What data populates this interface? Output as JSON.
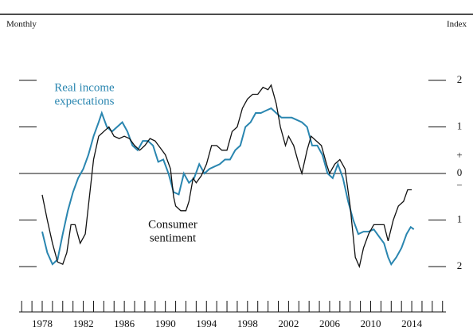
{
  "chart_data": {
    "type": "line",
    "header_left": "Monthly",
    "header_right": "Index",
    "xlim": [
      1975.75,
      2017.33
    ],
    "xticks": [
      1978,
      1982,
      1986,
      1990,
      1994,
      1998,
      2002,
      2006,
      2010,
      2014
    ],
    "xminor": [
      1976,
      1977,
      1978,
      1979,
      1980,
      1981,
      1982,
      1983,
      1984,
      1985,
      1986,
      1987,
      1988,
      1989,
      1990,
      1991,
      1992,
      1993,
      1994,
      1995,
      1996,
      1997,
      1998,
      1999,
      2000,
      2001,
      2002,
      2003,
      2004,
      2005,
      2006,
      2007,
      2008,
      2009,
      2010,
      2011,
      2012,
      2013,
      2014,
      2015,
      2016,
      2017
    ],
    "ylim": [
      -2.3,
      2.9
    ],
    "yticks": [
      2,
      1,
      0,
      {
        "value": -1,
        "label": "1"
      },
      {
        "value": -2,
        "label": "2"
      }
    ],
    "sign_labels": [
      "+",
      "−"
    ],
    "series": [
      {
        "name": "Real income expectations",
        "name_lines": [
          "Real income",
          "expectations"
        ],
        "color": "#2a86b0",
        "x": [
          1978.0,
          1978.5,
          1979.0,
          1979.5,
          1980.0,
          1980.5,
          1981.0,
          1981.5,
          1982.0,
          1982.5,
          1983.0,
          1983.5,
          1983.8,
          1984.3,
          1984.8,
          1985.3,
          1985.8,
          1986.3,
          1986.8,
          1987.3,
          1987.8,
          1988.3,
          1988.8,
          1989.3,
          1989.8,
          1990.3,
          1990.8,
          1991.3,
          1991.8,
          1992.3,
          1992.8,
          1993.3,
          1993.8,
          1994.3,
          1994.8,
          1995.3,
          1995.8,
          1996.3,
          1996.8,
          1997.3,
          1997.8,
          1998.3,
          1998.8,
          1999.3,
          1999.8,
          2000.3,
          2000.8,
          2001.3,
          2001.8,
          2002.3,
          2002.8,
          2003.3,
          2003.8,
          2004.3,
          2004.8,
          2005.3,
          2005.8,
          2006.3,
          2006.8,
          2007.3,
          2007.8,
          2008.3,
          2008.8,
          2009.3,
          2009.8,
          2010.3,
          2010.8,
          2011.3,
          2011.7,
          2012.0,
          2012.5,
          2013.0,
          2013.5,
          2013.9,
          2014.2
        ],
        "values": [
          -1.25,
          -1.7,
          -1.95,
          -1.85,
          -1.3,
          -0.8,
          -0.4,
          -0.1,
          0.1,
          0.4,
          0.8,
          1.1,
          1.3,
          1.0,
          0.9,
          1.0,
          1.1,
          0.9,
          0.6,
          0.5,
          0.7,
          0.7,
          0.6,
          0.25,
          0.3,
          0.0,
          -0.4,
          -0.45,
          0.0,
          -0.2,
          -0.1,
          0.2,
          0.0,
          0.1,
          0.15,
          0.2,
          0.3,
          0.3,
          0.5,
          0.6,
          1.0,
          1.1,
          1.3,
          1.3,
          1.35,
          1.4,
          1.3,
          1.2,
          1.2,
          1.2,
          1.15,
          1.1,
          1.0,
          0.6,
          0.6,
          0.4,
          0.0,
          -0.1,
          0.2,
          -0.1,
          -0.6,
          -1.0,
          -1.3,
          -1.25,
          -1.25,
          -1.2,
          -1.35,
          -1.5,
          -1.8,
          -1.95,
          -1.8,
          -1.6,
          -1.3,
          -1.15,
          -1.2
        ]
      },
      {
        "name": "Consumer sentiment",
        "name_lines": [
          "Consumer",
          "sentiment"
        ],
        "color": "#111111",
        "x": [
          1978.0,
          1978.5,
          1979.0,
          1979.5,
          1980.0,
          1980.4,
          1980.8,
          1981.2,
          1981.7,
          1982.2,
          1982.7,
          1983.0,
          1983.5,
          1984.0,
          1984.5,
          1985.0,
          1985.5,
          1986.0,
          1986.5,
          1987.0,
          1987.5,
          1988.0,
          1988.5,
          1989.0,
          1989.5,
          1990.0,
          1990.5,
          1990.8,
          1991.0,
          1991.5,
          1992.0,
          1992.3,
          1992.7,
          1993.0,
          1993.5,
          1994.0,
          1994.5,
          1995.0,
          1995.5,
          1996.0,
          1996.5,
          1997.0,
          1997.5,
          1998.0,
          1998.5,
          1999.0,
          1999.5,
          2000.0,
          2000.3,
          2000.8,
          2001.2,
          2001.7,
          2002.0,
          2002.5,
          2003.0,
          2003.3,
          2003.8,
          2004.2,
          2004.7,
          2005.2,
          2005.7,
          2006.0,
          2006.5,
          2007.0,
          2007.5,
          2008.0,
          2008.5,
          2008.9,
          2009.3,
          2009.8,
          2010.3,
          2010.8,
          2011.3,
          2011.7,
          2012.2,
          2012.7,
          2013.2,
          2013.6,
          2014.0
        ],
        "values": [
          -0.46,
          -1.0,
          -1.5,
          -1.9,
          -1.95,
          -1.7,
          -1.1,
          -1.1,
          -1.5,
          -1.3,
          -0.3,
          0.3,
          0.8,
          0.9,
          1.0,
          0.8,
          0.75,
          0.8,
          0.75,
          0.6,
          0.5,
          0.6,
          0.75,
          0.7,
          0.55,
          0.4,
          0.1,
          -0.5,
          -0.7,
          -0.8,
          -0.8,
          -0.6,
          -0.1,
          -0.2,
          -0.05,
          0.2,
          0.6,
          0.6,
          0.5,
          0.5,
          0.9,
          1.0,
          1.4,
          1.6,
          1.7,
          1.7,
          1.85,
          1.8,
          1.9,
          1.5,
          1.0,
          0.6,
          0.8,
          0.6,
          0.2,
          0.0,
          0.5,
          0.8,
          0.7,
          0.6,
          0.2,
          0.0,
          0.2,
          0.3,
          0.1,
          -0.7,
          -1.8,
          -2.0,
          -1.6,
          -1.3,
          -1.1,
          -1.1,
          -1.1,
          -1.45,
          -1.0,
          -0.7,
          -0.6,
          -0.35,
          -0.35
        ]
      }
    ]
  }
}
